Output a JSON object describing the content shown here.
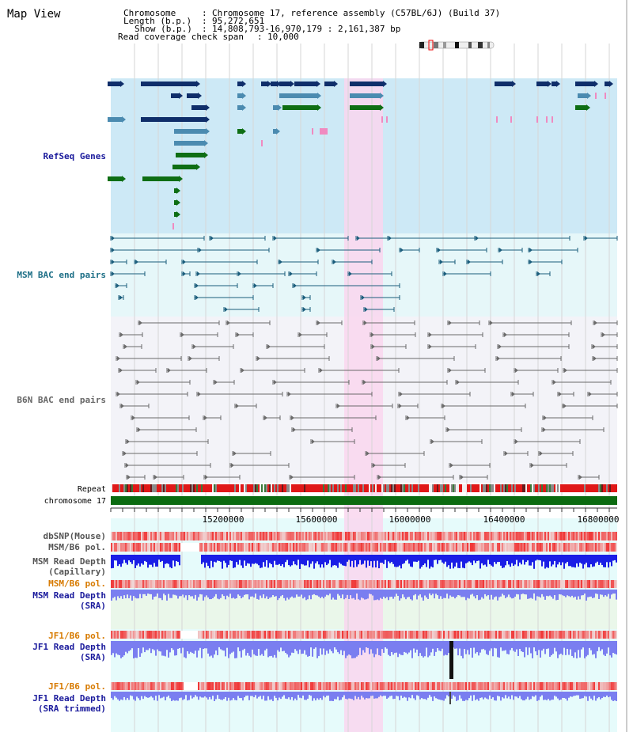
{
  "page": {
    "title": "Map View"
  },
  "info": {
    "chromosome_key": "Chromosome",
    "chromosome_val": "Chromosome 17, reference assembly (C57BL/6J) (Build 37)",
    "length_key": "Length (b.p.)",
    "length_val": "95,272,651",
    "show_key": "Show (b.p.)",
    "show_val": "14,808,793-16,970,179 : 2,161,387 bp",
    "coverage_key": "Read coverage check span",
    "coverage_val": "10,000"
  },
  "tracks": {
    "refseq": "RefSeq Genes",
    "msm_bac": "MSM BAC end pairs",
    "b6n_bac": "B6N BAC end pairs",
    "repeat": "Repeat",
    "chromosome": "chromosome 17",
    "dbsnp": "dbSNP(Mouse)",
    "msm_b6_pol": "MSM/B6 pol.",
    "msm_read_depth_cap": "MSM Read Depth\n(Capillary)",
    "msm_b6_pol_2": "MSM/B6 pol.",
    "msm_read_depth_sra": "MSM Read Depth\n(SRA)",
    "jf1_b6_pol": "JF1/B6 pol.",
    "jf1_read_depth_sra": "JF1 Read Depth\n(SRA)",
    "jf1_b6_pol_2": "JF1/B6 pol.",
    "jf1_read_depth_trim": "JF1 Read Depth\n(SRA trimmed)"
  },
  "axis": {
    "ticks": [
      "15200000",
      "15600000",
      "16000000",
      "16400000",
      "16800000"
    ]
  },
  "colors": {
    "refseq_bg": "#cde9f6",
    "msm_bg": "#e6f7f9",
    "b6n_bg": "#f3f3f8",
    "highlight": "#f9d6ef",
    "gene_navy": "#0f2e6a",
    "gene_steel": "#4b8bb0",
    "gene_green": "#0e6e14",
    "gene_pink": "#f08ac0",
    "msm_line": "#1b5d7c",
    "b6n_line": "#6a6a6a",
    "chromosome": "#0b6b10",
    "depth_blue": "#1a1ee6",
    "depth_light": "#7a7ef0",
    "jf1_label": "#d77a00",
    "label_blue": "#1a1a9c",
    "label_teal": "#1c6e86"
  }
}
